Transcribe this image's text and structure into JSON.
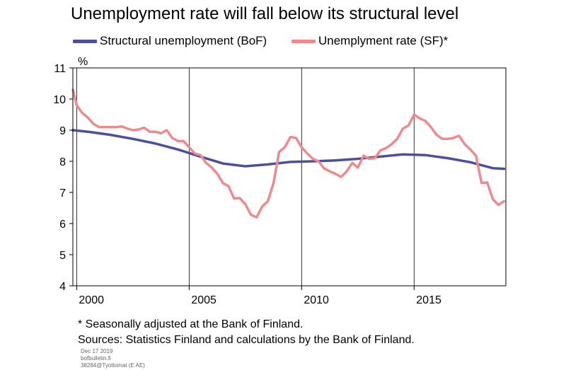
{
  "chart_data": {
    "type": "line",
    "title": "Unemployment rate will fall below its structural level",
    "ylabel": "%",
    "xlabel": "",
    "ylim": [
      4,
      11
    ],
    "xlim": [
      1999.83,
      2019.08
    ],
    "y_ticks": [
      "4",
      "5",
      "6",
      "7",
      "8",
      "9",
      "10",
      "11"
    ],
    "x_tick_labels": [
      "2000",
      "2005",
      "2010",
      "2015"
    ],
    "grid": "vertical lines at 2005, 2010, 2015",
    "legend_position": "top",
    "series": [
      {
        "name": "Structural unemployment (BoF)",
        "color": "#4b4f9c",
        "x": [
          1999.83,
          2000.5,
          2001.5,
          2002.5,
          2003.5,
          2004.5,
          2005.5,
          2006.5,
          2007.5,
          2008.5,
          2009.5,
          2010.5,
          2011.5,
          2012.5,
          2013.5,
          2014.5,
          2015.5,
          2016.5,
          2017.5,
          2018.5,
          2019.0
        ],
        "values": [
          9.0,
          8.95,
          8.85,
          8.72,
          8.57,
          8.38,
          8.15,
          7.93,
          7.84,
          7.9,
          7.98,
          8.0,
          8.03,
          8.08,
          8.15,
          8.22,
          8.2,
          8.1,
          7.97,
          7.78,
          7.76
        ]
      },
      {
        "name": "Unemplyment rate (SF)*",
        "color": "#ee8a8c",
        "x": [
          1999.83,
          2000.0,
          2000.25,
          2000.5,
          2000.75,
          2001.0,
          2001.25,
          2001.5,
          2001.75,
          2002.0,
          2002.25,
          2002.5,
          2002.75,
          2003.0,
          2003.25,
          2003.5,
          2003.75,
          2004.0,
          2004.25,
          2004.5,
          2004.75,
          2005.0,
          2005.25,
          2005.5,
          2005.75,
          2006.0,
          2006.25,
          2006.5,
          2006.75,
          2007.0,
          2007.25,
          2007.5,
          2007.75,
          2008.0,
          2008.25,
          2008.5,
          2008.75,
          2009.0,
          2009.25,
          2009.5,
          2009.75,
          2010.0,
          2010.25,
          2010.5,
          2010.75,
          2011.0,
          2011.25,
          2011.5,
          2011.75,
          2012.0,
          2012.25,
          2012.5,
          2012.75,
          2013.0,
          2013.25,
          2013.5,
          2013.75,
          2014.0,
          2014.25,
          2014.5,
          2014.75,
          2015.0,
          2015.25,
          2015.5,
          2015.75,
          2016.0,
          2016.25,
          2016.5,
          2016.75,
          2017.0,
          2017.25,
          2017.5,
          2017.75,
          2018.0,
          2018.25,
          2018.5,
          2018.75,
          2019.0
        ],
        "values": [
          10.3,
          9.8,
          9.55,
          9.4,
          9.2,
          9.1,
          9.1,
          9.1,
          9.1,
          9.12,
          9.05,
          9.0,
          9.02,
          9.08,
          8.95,
          8.95,
          8.9,
          9.0,
          8.75,
          8.65,
          8.65,
          8.45,
          8.25,
          8.2,
          7.95,
          7.8,
          7.6,
          7.3,
          7.2,
          6.8,
          6.82,
          6.62,
          6.28,
          6.2,
          6.55,
          6.72,
          7.3,
          8.3,
          8.45,
          8.78,
          8.75,
          8.45,
          8.25,
          8.08,
          8.0,
          7.77,
          7.68,
          7.6,
          7.5,
          7.67,
          7.95,
          7.8,
          8.18,
          8.08,
          8.1,
          8.35,
          8.42,
          8.55,
          8.72,
          9.05,
          9.15,
          9.5,
          9.38,
          9.3,
          9.1,
          8.85,
          8.72,
          8.72,
          8.75,
          8.82,
          8.55,
          8.38,
          8.18,
          7.3,
          7.32,
          6.78,
          6.6,
          6.72
        ]
      }
    ]
  },
  "footnote": "* Seasonally adjusted at the Bank of Finland.",
  "sources": "Sources: Statistics Finland and calculations by the Bank of Finland.",
  "meta": {
    "date": "Dec 17 2019",
    "site": "bofbulletin.fi",
    "code": "38284@Tyottomat (E AE)"
  }
}
